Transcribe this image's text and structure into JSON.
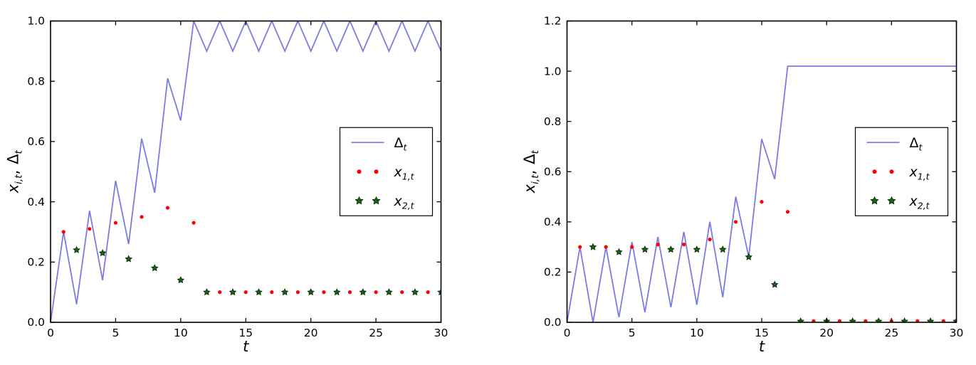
{
  "figure": {
    "background": "#ffffff",
    "axis_color": "#000000",
    "text_color": "#000000"
  },
  "chart_data": [
    {
      "type": "line",
      "title": "",
      "xlabel": "t",
      "ylabel": "x_{i,t}, Δ_t",
      "xlabel_segments": [
        {
          "base": "t",
          "sub": ""
        }
      ],
      "ylabel_segments": [
        {
          "base": "x",
          "sub": "i,t"
        },
        {
          "base": ",",
          "sub": ""
        },
        {
          "base": "Δ",
          "sub": "t"
        }
      ],
      "xlim": [
        0,
        30
      ],
      "ylim": [
        0,
        1.0
      ],
      "grid": false,
      "legend_position": "center-right",
      "xticks": {
        "values": [
          0,
          5,
          10,
          15,
          20,
          25,
          30
        ],
        "labels": [
          "0",
          "5",
          "10",
          "15",
          "20",
          "25",
          "30"
        ]
      },
      "yticks": {
        "values": [
          0.0,
          0.2,
          0.4,
          0.6,
          0.8,
          1.0
        ],
        "labels": [
          "0.0",
          "0.2",
          "0.4",
          "0.6",
          "0.8",
          "1.0"
        ]
      },
      "series": [
        {
          "id": "delta",
          "style": "line",
          "color": "#7b7ce3",
          "label": {
            "base": "Δ",
            "sub": "t"
          },
          "x": [
            0,
            1,
            2,
            3,
            4,
            5,
            6,
            7,
            8,
            9,
            10,
            11,
            12,
            13,
            14,
            15,
            16,
            17,
            18,
            19,
            20,
            21,
            22,
            23,
            24,
            25,
            26,
            27,
            28,
            29,
            30
          ],
          "y": [
            0.0,
            0.3,
            0.06,
            0.37,
            0.14,
            0.47,
            0.26,
            0.61,
            0.43,
            0.81,
            0.67,
            1.0,
            0.9,
            1.0,
            0.9,
            1.0,
            0.9,
            1.0,
            0.9,
            1.0,
            0.9,
            1.0,
            0.9,
            1.0,
            0.9,
            1.0,
            0.9,
            1.0,
            0.9,
            1.0,
            0.9
          ]
        },
        {
          "id": "x1",
          "style": "dot",
          "color": "#ff0000",
          "label": {
            "base": "x",
            "sub": "1,t"
          },
          "x": [
            1,
            3,
            5,
            7,
            9,
            11,
            13,
            15,
            17,
            19,
            21,
            23,
            25,
            27,
            29
          ],
          "y": [
            0.3,
            0.31,
            0.33,
            0.35,
            0.38,
            0.33,
            0.1,
            0.1,
            0.1,
            0.1,
            0.1,
            0.1,
            0.1,
            0.1,
            0.1
          ]
        },
        {
          "id": "x2",
          "style": "star",
          "fill": "#146414",
          "edge": "#042504",
          "label": {
            "base": "x",
            "sub": "2,t"
          },
          "x": [
            2,
            4,
            6,
            8,
            10,
            12,
            14,
            16,
            18,
            20,
            22,
            24,
            26,
            28,
            30
          ],
          "y": [
            0.24,
            0.23,
            0.21,
            0.18,
            0.14,
            0.1,
            0.1,
            0.1,
            0.1,
            0.1,
            0.1,
            0.1,
            0.1,
            0.1,
            0.1
          ]
        }
      ]
    },
    {
      "type": "line",
      "title": "",
      "xlabel": "t",
      "ylabel": "x_{i,t}, Δ_t",
      "xlabel_segments": [
        {
          "base": "t",
          "sub": ""
        }
      ],
      "ylabel_segments": [
        {
          "base": "x",
          "sub": "i,t"
        },
        {
          "base": ",",
          "sub": ""
        },
        {
          "base": "Δ",
          "sub": "t"
        }
      ],
      "xlim": [
        0,
        30
      ],
      "ylim": [
        0,
        1.2
      ],
      "grid": false,
      "legend_position": "center-right",
      "xticks": {
        "values": [
          0,
          5,
          10,
          15,
          20,
          25,
          30
        ],
        "labels": [
          "0",
          "5",
          "10",
          "15",
          "20",
          "25",
          "30"
        ]
      },
      "yticks": {
        "values": [
          0.0,
          0.2,
          0.4,
          0.6,
          0.8,
          1.0,
          1.2
        ],
        "labels": [
          "0.0",
          "0.2",
          "0.4",
          "0.6",
          "0.8",
          "1.0",
          "1.2"
        ]
      },
      "series": [
        {
          "id": "delta",
          "style": "line",
          "color": "#7b7ce3",
          "label": {
            "base": "Δ",
            "sub": "t"
          },
          "x": [
            0,
            1,
            2,
            3,
            4,
            5,
            6,
            7,
            8,
            9,
            10,
            11,
            12,
            13,
            14,
            15,
            16,
            17,
            18,
            19,
            20,
            21,
            22,
            23,
            24,
            25,
            26,
            27,
            28,
            29,
            30
          ],
          "y": [
            0.0,
            0.3,
            0.0,
            0.3,
            0.02,
            0.32,
            0.04,
            0.34,
            0.06,
            0.36,
            0.07,
            0.4,
            0.1,
            0.5,
            0.26,
            0.73,
            0.57,
            1.02,
            1.02,
            1.02,
            1.02,
            1.02,
            1.02,
            1.02,
            1.02,
            1.02,
            1.02,
            1.02,
            1.02,
            1.02,
            1.02
          ]
        },
        {
          "id": "x1",
          "style": "dot",
          "color": "#ff0000",
          "label": {
            "base": "x",
            "sub": "1,t"
          },
          "x": [
            1,
            3,
            5,
            7,
            9,
            11,
            13,
            15,
            17,
            19,
            21,
            23,
            25,
            27,
            29
          ],
          "y": [
            0.3,
            0.3,
            0.3,
            0.31,
            0.31,
            0.33,
            0.4,
            0.48,
            0.44,
            0.005,
            0.005,
            0.005,
            0.005,
            0.005,
            0.005
          ]
        },
        {
          "id": "x2",
          "style": "star",
          "fill": "#146414",
          "edge": "#042504",
          "label": {
            "base": "x",
            "sub": "2,t"
          },
          "x": [
            2,
            4,
            6,
            8,
            10,
            12,
            14,
            16,
            18,
            20,
            22,
            24,
            26,
            28,
            30
          ],
          "y": [
            0.3,
            0.28,
            0.29,
            0.29,
            0.29,
            0.29,
            0.26,
            0.15,
            0.004,
            0.004,
            0.004,
            0.004,
            0.004,
            0.004,
            0.004
          ]
        }
      ]
    }
  ]
}
